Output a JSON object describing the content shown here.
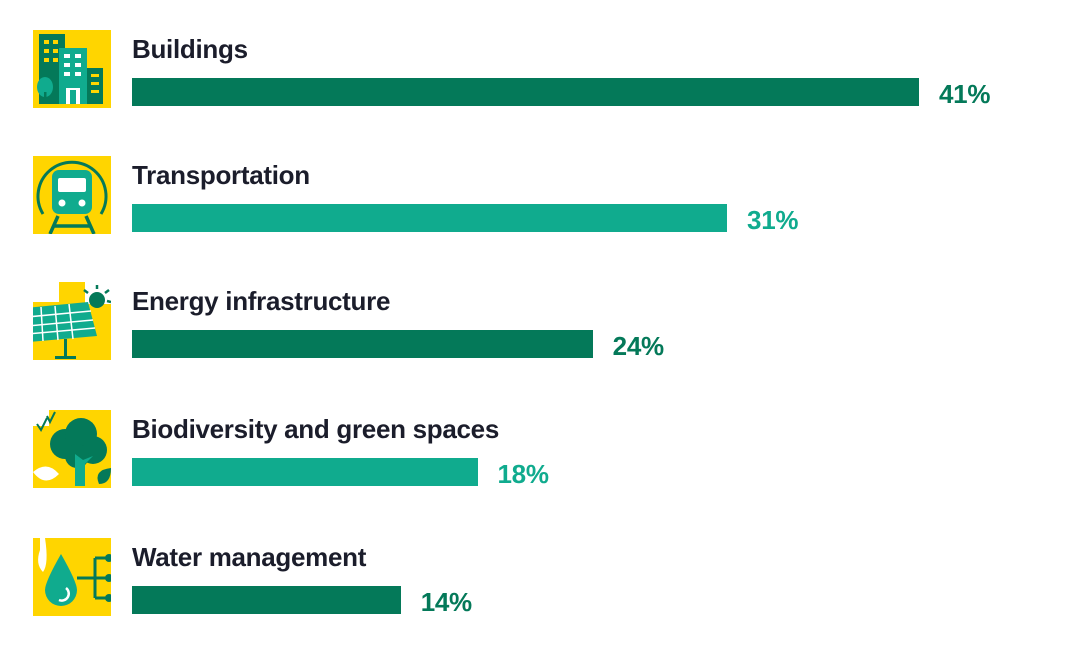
{
  "colors": {
    "dark": "#047959",
    "light": "#10ab8e",
    "yellow": "#ffd500",
    "text": "#1b1d2b"
  },
  "chart_data": {
    "type": "bar",
    "orientation": "horizontal",
    "categories": [
      "Buildings",
      "Transportation",
      "Energy infrastructure",
      "Biodiversity and green spaces",
      "Water management"
    ],
    "values": [
      41,
      31,
      24,
      18,
      14
    ],
    "value_labels": [
      "41%",
      "31%",
      "24%",
      "18%",
      "14%"
    ],
    "icons": [
      "buildings-icon",
      "train-icon",
      "solar-panel-icon",
      "tree-icon",
      "water-drop-icon"
    ],
    "bar_colors": [
      "#047959",
      "#10ab8e",
      "#047959",
      "#10ab8e",
      "#047959"
    ],
    "unit": "%",
    "xlim": [
      0,
      50
    ],
    "grid": false,
    "legend": "none"
  }
}
